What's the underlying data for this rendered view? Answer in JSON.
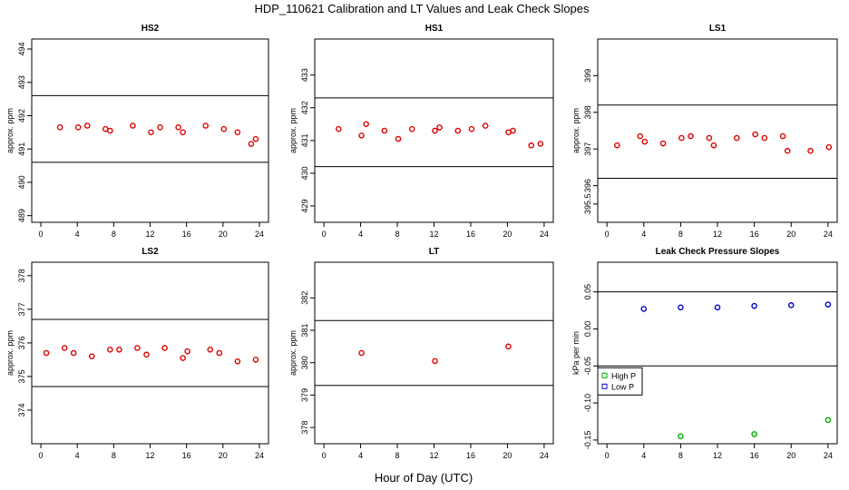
{
  "title": "HDP_110621  Calibration and LT Values and Leak Check Slopes",
  "xlabel": "Hour of Day (UTC)",
  "colors": {
    "point": "#dd0000",
    "high_p": "#00aa00",
    "low_p": "#0000cc",
    "line": "#000000"
  },
  "chart_data": [
    {
      "type": "scatter",
      "title": "HS2",
      "ylabel": "approx. ppm",
      "xlim": [
        -1,
        25
      ],
      "ylim": [
        488.8,
        494.3
      ],
      "xticks": [
        "0",
        "4",
        "8",
        "12",
        "16",
        "20",
        "24"
      ],
      "yticks": [
        "489",
        "490",
        "491",
        "492",
        "493",
        "494"
      ],
      "hlines": [
        490.6,
        492.6
      ],
      "series": [
        {
          "x": [
            2.1,
            4.1,
            5.1,
            7.1,
            7.6,
            10.1,
            12.1,
            13.1,
            15.1,
            15.6,
            18.1,
            20.1,
            21.6,
            23.1,
            23.6
          ],
          "y": [
            491.65,
            491.65,
            491.7,
            491.6,
            491.55,
            491.7,
            491.5,
            491.65,
            491.65,
            491.5,
            491.7,
            491.6,
            491.5,
            491.15,
            491.3
          ]
        }
      ]
    },
    {
      "type": "scatter",
      "title": "HS1",
      "ylabel": "approx. ppm",
      "xlim": [
        -1,
        25
      ],
      "ylim": [
        428.5,
        434.1
      ],
      "xticks": [
        "0",
        "4",
        "8",
        "12",
        "16",
        "20",
        "24"
      ],
      "yticks": [
        "429",
        "430",
        "431",
        "432",
        "433"
      ],
      "hlines": [
        430.2,
        432.3
      ],
      "series": [
        {
          "x": [
            1.6,
            4.1,
            4.6,
            6.6,
            8.1,
            9.6,
            12.1,
            12.6,
            14.6,
            16.1,
            17.6,
            20.1,
            20.6,
            22.6,
            23.6
          ],
          "y": [
            431.35,
            431.15,
            431.5,
            431.3,
            431.05,
            431.35,
            431.3,
            431.4,
            431.3,
            431.35,
            431.45,
            431.25,
            431.3,
            430.85,
            430.9
          ]
        }
      ]
    },
    {
      "type": "scatter",
      "title": "LS1",
      "ylabel": "approx. ppm",
      "xlim": [
        -1,
        25
      ],
      "ylim": [
        395.0,
        400.0
      ],
      "xticks": [
        "0",
        "4",
        "8",
        "12",
        "16",
        "20",
        "24"
      ],
      "yticks": [
        "395.5",
        "396",
        "397",
        "398",
        "399"
      ],
      "hlines": [
        396.2,
        398.2
      ],
      "series": [
        {
          "x": [
            1.1,
            3.6,
            4.1,
            6.1,
            8.1,
            9.1,
            11.1,
            11.6,
            14.1,
            16.1,
            17.1,
            19.1,
            19.6,
            22.1,
            24.1
          ],
          "y": [
            397.1,
            397.35,
            397.2,
            397.15,
            397.3,
            397.35,
            397.3,
            397.1,
            397.3,
            397.4,
            397.3,
            397.35,
            396.95,
            396.95,
            397.05
          ]
        }
      ]
    },
    {
      "type": "scatter",
      "title": "LS2",
      "ylabel": "approx. ppm",
      "xlim": [
        -1,
        25
      ],
      "ylim": [
        373.0,
        378.4
      ],
      "xticks": [
        "0",
        "4",
        "8",
        "12",
        "16",
        "20",
        "24"
      ],
      "yticks": [
        "374",
        "375",
        "376",
        "377",
        "378"
      ],
      "hlines": [
        374.7,
        376.7
      ],
      "series": [
        {
          "x": [
            0.6,
            2.6,
            3.6,
            5.6,
            7.6,
            8.6,
            10.6,
            11.6,
            13.6,
            15.6,
            16.1,
            18.6,
            19.6,
            21.6,
            23.6
          ],
          "y": [
            375.7,
            375.85,
            375.7,
            375.6,
            375.8,
            375.8,
            375.85,
            375.65,
            375.85,
            375.55,
            375.75,
            375.8,
            375.7,
            375.45,
            375.5
          ]
        }
      ]
    },
    {
      "type": "scatter",
      "title": "LT",
      "ylabel": "approx. ppm",
      "xlim": [
        -1,
        25
      ],
      "ylim": [
        377.5,
        383.1
      ],
      "xticks": [
        "0",
        "4",
        "8",
        "12",
        "16",
        "20",
        "24"
      ],
      "yticks": [
        "378",
        "379",
        "380",
        "381",
        "382"
      ],
      "hlines": [
        379.3,
        381.3
      ],
      "series": [
        {
          "x": [
            4.1,
            12.1,
            20.1
          ],
          "y": [
            380.3,
            380.05,
            380.5
          ]
        }
      ]
    },
    {
      "type": "scatter",
      "title": "Leak Check Pressure Slopes",
      "ylabel": "kPa per min",
      "xlim": [
        -1,
        25
      ],
      "ylim": [
        -0.155,
        0.09
      ],
      "xticks": [
        "0",
        "4",
        "8",
        "12",
        "16",
        "20",
        "24"
      ],
      "yticks": [
        "0.05",
        "0.00",
        "-0.05",
        "-0.10",
        "-0.15"
      ],
      "hlines": [
        0.05,
        -0.05
      ],
      "legend": {
        "position": "left",
        "entries": [
          "High P",
          "Low P"
        ]
      },
      "series": [
        {
          "name": "High P",
          "x": [
            8,
            16,
            24
          ],
          "y": [
            -0.145,
            -0.142,
            -0.123
          ]
        },
        {
          "name": "Low P",
          "x": [
            4,
            8,
            12,
            16,
            20,
            24
          ],
          "y": [
            0.027,
            0.029,
            0.029,
            0.031,
            0.032,
            0.033
          ]
        }
      ]
    }
  ]
}
